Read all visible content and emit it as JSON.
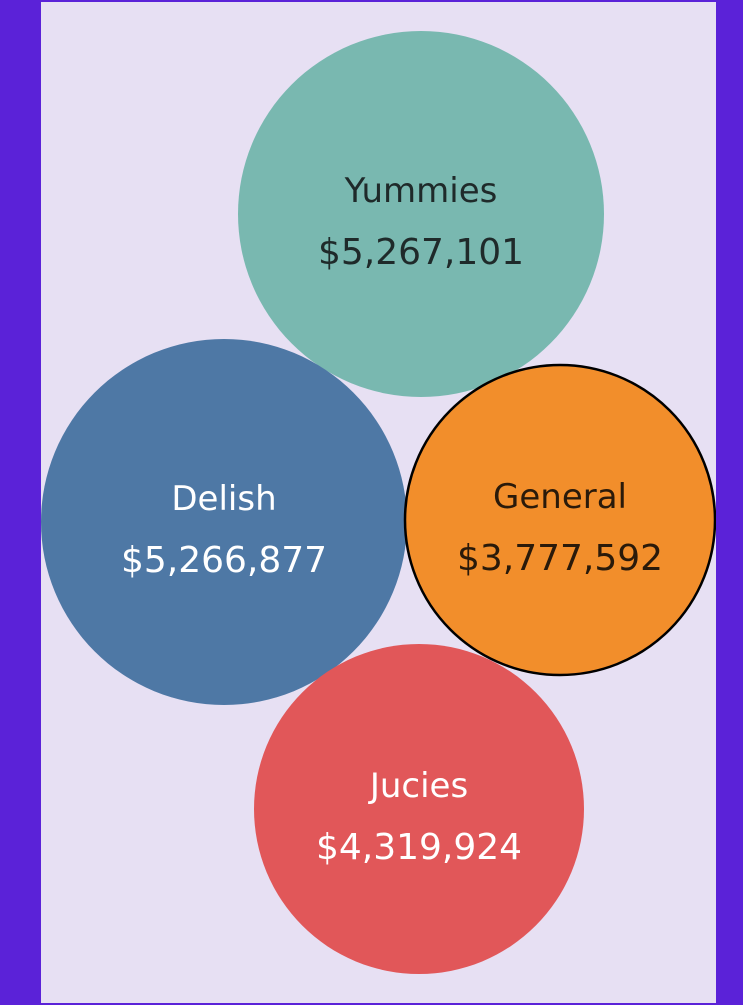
{
  "chart_data": {
    "type": "bubble",
    "title": "",
    "currency": "$",
    "series": [
      {
        "name": "Yummies",
        "value": 5267101,
        "value_label": "$5,267,101",
        "color": "#79b8b0",
        "text_color": "#1f2a2a",
        "selected": false
      },
      {
        "name": "Delish",
        "value": 5266877,
        "value_label": "$5,266,877",
        "color": "#4e78a5",
        "text_color": "#ffffff",
        "selected": false
      },
      {
        "name": "General",
        "value": 3777592,
        "value_label": "$3,777,592",
        "color": "#f28e2b",
        "text_color": "#2a1a0a",
        "selected": true
      },
      {
        "name": "Jucies",
        "value": 4319924,
        "value_label": "$4,319,924",
        "color": "#e15759",
        "text_color": "#ffffff",
        "selected": false
      }
    ]
  },
  "colors": {
    "frame": "#5b22d8",
    "background": "#e7e0f3"
  }
}
